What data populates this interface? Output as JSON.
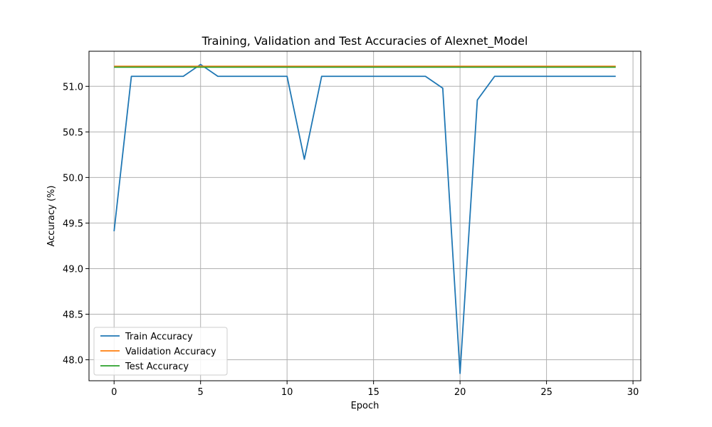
{
  "chart_data": {
    "type": "line",
    "title": "Training, Validation and Test Accuracies of Alexnet_Model",
    "xlabel": "Epoch",
    "ylabel": "Accuracy (%)",
    "xlim": [
      -1.45,
      30.45
    ],
    "ylim": [
      47.77,
      51.385
    ],
    "xticks": [
      0,
      5,
      10,
      15,
      20,
      25,
      30
    ],
    "yticks": [
      48.0,
      48.5,
      49.0,
      49.5,
      50.0,
      50.5,
      51.0
    ],
    "xtick_labels": [
      "0",
      "5",
      "10",
      "15",
      "20",
      "25",
      "30"
    ],
    "ytick_labels": [
      "48.0",
      "48.5",
      "49.0",
      "49.5",
      "50.0",
      "50.5",
      "51.0"
    ],
    "grid": true,
    "legend_position": "lower-left",
    "x": [
      0,
      1,
      2,
      3,
      4,
      5,
      6,
      7,
      8,
      9,
      10,
      11,
      12,
      13,
      14,
      15,
      16,
      17,
      18,
      19,
      20,
      21,
      22,
      23,
      24,
      25,
      26,
      27,
      28,
      29
    ],
    "series": [
      {
        "name": "Train Accuracy",
        "color": "#1f77b4",
        "values": [
          49.41,
          51.11,
          51.11,
          51.11,
          51.11,
          51.24,
          51.11,
          51.11,
          51.11,
          51.11,
          51.11,
          50.2,
          51.11,
          51.11,
          51.11,
          51.11,
          51.11,
          51.11,
          51.11,
          50.98,
          47.85,
          50.85,
          51.11,
          51.11,
          51.11,
          51.11,
          51.11,
          51.11,
          51.11,
          51.11
        ]
      },
      {
        "name": "Validation Accuracy",
        "color": "#ff7f0e",
        "values": [
          51.22,
          51.22,
          51.22,
          51.22,
          51.22,
          51.22,
          51.22,
          51.22,
          51.22,
          51.22,
          51.22,
          51.22,
          51.22,
          51.22,
          51.22,
          51.22,
          51.22,
          51.22,
          51.22,
          51.22,
          51.22,
          51.22,
          51.22,
          51.22,
          51.22,
          51.22,
          51.22,
          51.22,
          51.22,
          51.22
        ]
      },
      {
        "name": "Test Accuracy",
        "color": "#2ca02c",
        "values": [
          51.21,
          51.21,
          51.21,
          51.21,
          51.21,
          51.21,
          51.21,
          51.21,
          51.21,
          51.21,
          51.21,
          51.21,
          51.21,
          51.21,
          51.21,
          51.21,
          51.21,
          51.21,
          51.21,
          51.21,
          51.21,
          51.21,
          51.21,
          51.21,
          51.21,
          51.21,
          51.21,
          51.21,
          51.21,
          51.21
        ]
      }
    ]
  }
}
